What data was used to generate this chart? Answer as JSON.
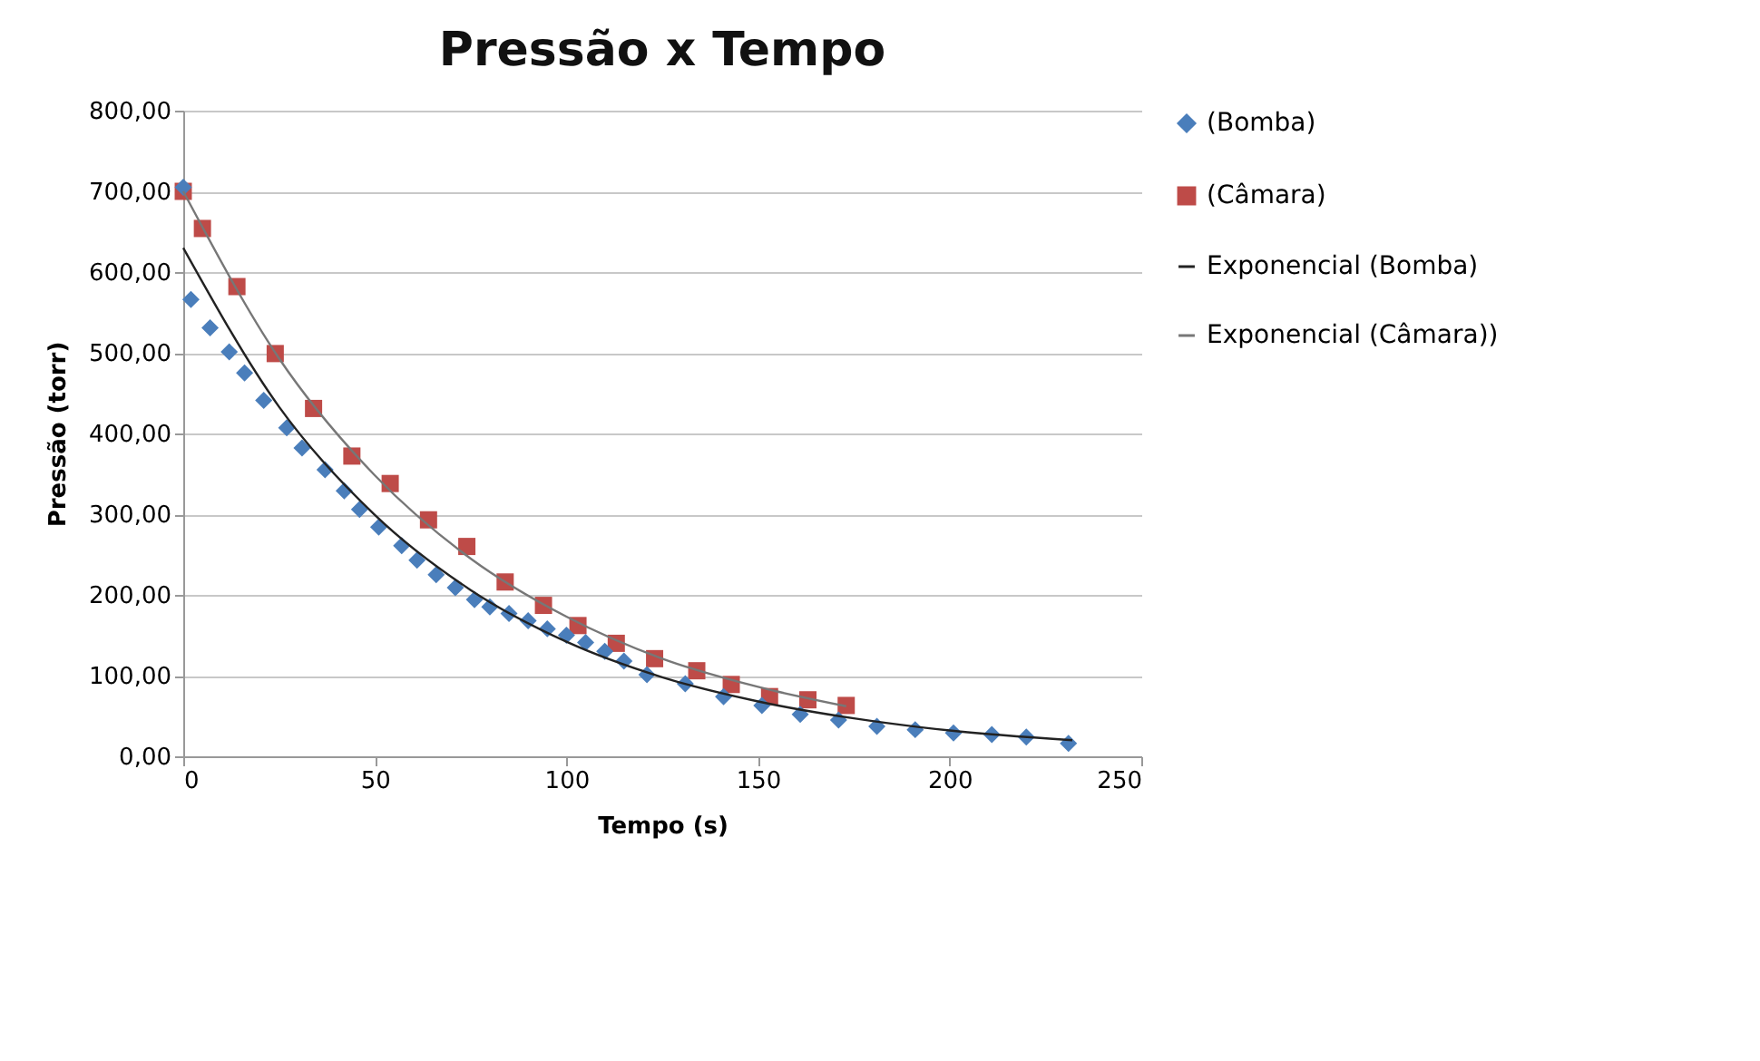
{
  "chart_data": {
    "type": "scatter",
    "title": "Pressão x Tempo",
    "xlabel": "Tempo (s)",
    "ylabel": "Pressão (torr)",
    "xlim": [
      0,
      250
    ],
    "xticks": [
      0,
      50,
      100,
      150,
      200,
      250
    ],
    "ylim": [
      0,
      800
    ],
    "yticks": [
      {
        "value": 0,
        "label": "0,00"
      },
      {
        "value": 100,
        "label": "100,00"
      },
      {
        "value": 200,
        "label": "200,00"
      },
      {
        "value": 300,
        "label": "300,00"
      },
      {
        "value": 400,
        "label": "400,00"
      },
      {
        "value": 500,
        "label": "500,00"
      },
      {
        "value": 600,
        "label": "600,00"
      },
      {
        "value": 700,
        "label": "700,00"
      },
      {
        "value": 800,
        "label": "800,00"
      }
    ],
    "grid": "y",
    "legend": "right",
    "series": [
      {
        "name": "(Bomba)",
        "marker": "diamond",
        "color": "#4a7ebb",
        "x": [
          0,
          2,
          7,
          12,
          16,
          21,
          27,
          31,
          37,
          42,
          46,
          51,
          57,
          61,
          66,
          71,
          76,
          80,
          85,
          90,
          95,
          100,
          105,
          110,
          115,
          121,
          131,
          141,
          151,
          161,
          171,
          181,
          191,
          201,
          211,
          220,
          231
        ],
        "values": [
          705,
          566,
          531,
          501,
          475,
          441,
          407,
          382,
          355,
          329,
          306,
          284,
          261,
          243,
          225,
          209,
          194,
          185,
          177,
          168,
          158,
          150,
          141,
          130,
          118,
          101,
          90,
          74,
          63,
          52,
          45,
          37,
          33,
          29,
          27,
          24,
          16
        ]
      },
      {
        "name": "(Câmara)",
        "marker": "square",
        "color": "#be4b48",
        "x": [
          0,
          5,
          14,
          24,
          34,
          44,
          54,
          64,
          74,
          84,
          94,
          103,
          113,
          123,
          134,
          143,
          153,
          163,
          173
        ],
        "values": [
          700,
          654,
          582,
          499,
          431,
          372,
          338,
          293,
          260,
          216,
          187,
          162,
          140,
          121,
          106,
          89,
          74,
          70,
          63
        ]
      },
      {
        "name": "Exponencial (Bomba)",
        "type": "line",
        "marker": "none",
        "color": "#222222",
        "x": [
          0,
          25,
          50,
          75,
          100,
          125,
          150,
          175,
          200,
          232
        ],
        "values": [
          630,
          433,
          299,
          206,
          142,
          98,
          68,
          47,
          32,
          20
        ]
      },
      {
        "name": "Exponencial (Câmara))",
        "type": "line",
        "marker": "none",
        "color": "#777777",
        "x": [
          0,
          25,
          50,
          75,
          100,
          125,
          150,
          173
        ],
        "values": [
          700,
          493,
          348,
          245,
          173,
          121,
          86,
          62
        ]
      }
    ]
  }
}
